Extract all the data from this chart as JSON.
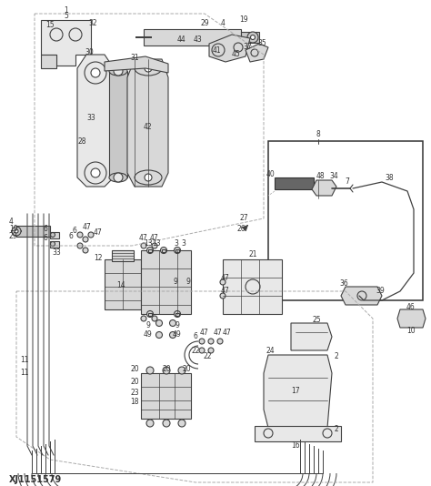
{
  "fig_width": 4.74,
  "fig_height": 5.34,
  "dpi": 100,
  "bg_color": "#ffffff",
  "lc": "#404040",
  "lc2": "#555555",
  "gray1": "#c8c8c8",
  "gray2": "#d8d8d8",
  "gray3": "#e8e8e8",
  "dark": "#333333",
  "part_label_size": 5.5,
  "watermark": "XJ1151579",
  "watermark_size": 7
}
